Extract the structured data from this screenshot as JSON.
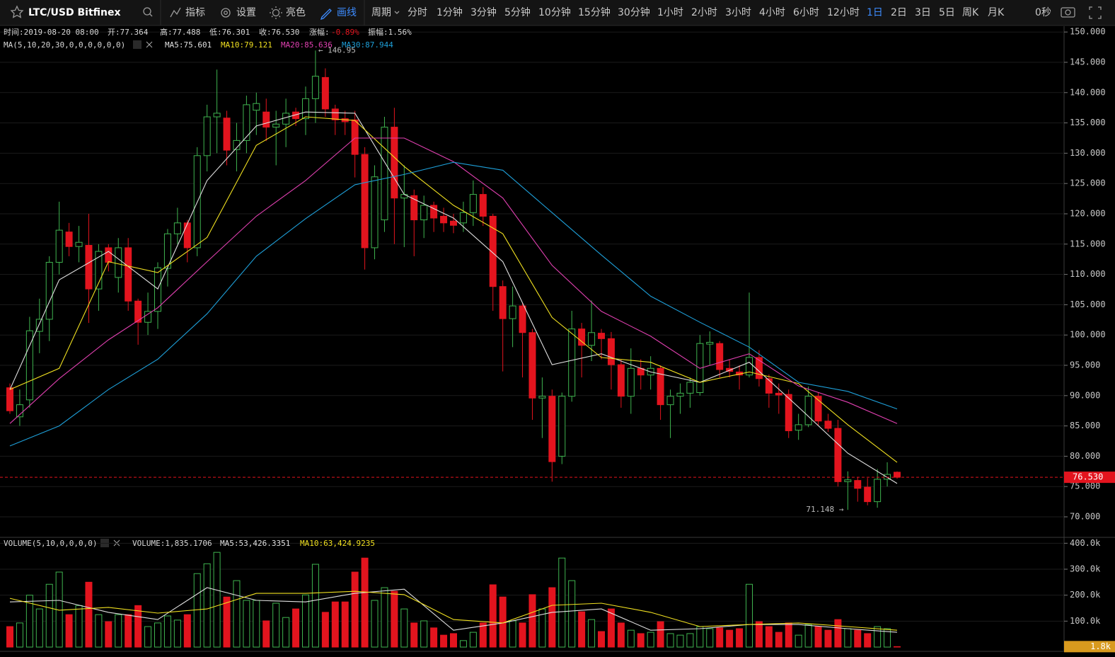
{
  "toolbar": {
    "symbol": "LTC/USD Bitfinex",
    "tools": [
      "指标",
      "设置",
      "亮色",
      "画线"
    ],
    "active_tool": 3,
    "period_label": "周期",
    "periods": [
      "分时",
      "1分钟",
      "3分钟",
      "5分钟",
      "10分钟",
      "15分钟",
      "30分钟",
      "1小时",
      "2小时",
      "3小时",
      "4小时",
      "6小时",
      "12小时",
      "1日",
      "2日",
      "3日",
      "5日",
      "周K",
      "月K"
    ],
    "active_period": 13,
    "timer": "0秒"
  },
  "chart_data": [
    {
      "type": "candlestick",
      "info": [
        "时间:2019-08-20 08:00",
        "开:77.364",
        "高:77.488",
        "低:76.301",
        "收:76.530",
        "涨幅:",
        "-0.89%",
        "振幅:1.56%"
      ],
      "ma_legend": "MA(5,10,20,30,0,0,0,0,0,0)",
      "up_color": "#3fb34f",
      "down_color": "#e3141e",
      "categories": [
        null,
        null,
        null,
        null,
        null,
        null,
        null,
        null,
        null,
        null,
        null,
        null,
        null,
        null,
        null,
        null,
        null,
        null,
        null,
        null,
        null,
        null,
        null,
        null,
        null,
        null,
        null,
        null,
        null,
        null,
        null,
        null,
        null,
        null,
        null,
        null,
        null,
        null,
        null,
        null,
        null,
        null,
        null,
        null,
        null,
        null,
        null,
        null,
        null,
        null,
        null,
        null,
        null,
        null,
        null,
        null,
        null,
        null,
        null,
        null,
        null,
        null,
        null,
        null,
        null,
        null,
        null,
        null,
        null,
        null,
        null,
        null,
        null,
        null,
        null,
        null,
        null,
        null,
        null,
        null,
        null,
        null,
        null,
        null,
        null,
        null,
        null,
        null,
        null,
        null,
        null
      ],
      "open": [
        91.3,
        86.5,
        89.3,
        100.6,
        102.6,
        112,
        117.0,
        114.6,
        114.8,
        107.6,
        114.4,
        109.5,
        114.4,
        105.6,
        102.1,
        103.9,
        111,
        116.7,
        118.5,
        114.4,
        129.6,
        136,
        135.8,
        130.6,
        132.1,
        137.1,
        136.8,
        134.3,
        134.8,
        136.8,
        135.7,
        139,
        142.5,
        137.3,
        135.7,
        135.5,
        129.8,
        114.4,
        119,
        134.3,
        122.6,
        123,
        119,
        121.4,
        119.6,
        118.8,
        118.5,
        120.2,
        123.2,
        119.6,
        108,
        102.7,
        104.8,
        100.4,
        89.6,
        89.9,
        80,
        89.9,
        101,
        98.3,
        100.3,
        99.4,
        95.1,
        89.9,
        94.5,
        93.4,
        94.5,
        88.5,
        89.9,
        90.4,
        90.5,
        98.5,
        98.6,
        94.5,
        93.9,
        93.4,
        96.3,
        92.8,
        90.4,
        90.2,
        84.3,
        85.2,
        89.9,
        85.8,
        84.6,
        75.8,
        76,
        74.9,
        72.5,
        76.2,
        77.364
      ],
      "high": [
        92,
        91,
        103,
        106,
        113,
        122,
        118.5,
        118,
        120,
        115,
        115,
        116,
        116,
        106,
        107,
        112,
        117.5,
        121,
        119,
        131,
        138,
        143.8,
        137,
        135,
        139.5,
        140,
        139,
        137,
        139,
        137.5,
        141,
        146.95,
        144,
        138,
        137,
        137,
        131,
        128,
        136,
        137.5,
        128,
        124,
        123,
        122,
        121,
        120,
        122,
        125.5,
        124.4,
        120,
        109,
        108,
        105.3,
        101,
        93,
        91,
        90.5,
        104,
        102,
        105.7,
        101,
        100.5,
        96,
        97.8,
        96,
        96.5,
        95,
        91,
        92,
        93,
        100,
        100.6,
        99,
        96,
        95,
        107,
        97.5,
        93.5,
        92,
        91,
        87,
        91.5,
        90.5,
        87,
        86,
        77.5,
        76.6,
        76.4,
        77.9,
        79,
        77.488
      ],
      "low": [
        87,
        85,
        88,
        97,
        99,
        110,
        113,
        112,
        102,
        104,
        110.5,
        107,
        104,
        98.4,
        100,
        101,
        108,
        115,
        112,
        113,
        127,
        130,
        128,
        127,
        130,
        133,
        132,
        128,
        131,
        134.5,
        133,
        135,
        136,
        133,
        133,
        126,
        110.8,
        112.5,
        117,
        115,
        114.5,
        113,
        116,
        117,
        117,
        116.8,
        117,
        118,
        118,
        104,
        94,
        98,
        93,
        86,
        83,
        75.8,
        78.7,
        89,
        93,
        95.7,
        96,
        91,
        88,
        87,
        91,
        91,
        86,
        83,
        87,
        88,
        90,
        95,
        93,
        93,
        91,
        93,
        91.5,
        88,
        87,
        83,
        82.7,
        84.8,
        85,
        84,
        75,
        71.148,
        72.5,
        71.9,
        71.5,
        75,
        76.301
      ],
      "close": [
        87.5,
        88.5,
        100.7,
        102.6,
        112,
        117.3,
        114.6,
        115.3,
        107.6,
        113.8,
        112.0,
        114.4,
        105.6,
        102.1,
        103.9,
        111.1,
        116.7,
        118.5,
        114.4,
        129.6,
        136.0,
        136.6,
        130.5,
        132.1,
        138,
        138.2,
        134.3,
        134.8,
        136.6,
        135.7,
        139,
        142.7,
        137.3,
        135.5,
        135.2,
        129.8,
        114.4,
        126.1,
        134.3,
        122.6,
        123.2,
        119,
        121.4,
        119.3,
        118.5,
        118.1,
        120.2,
        123.2,
        119.6,
        108.0,
        102.7,
        104.8,
        100.4,
        89.6,
        89.9,
        79.1,
        89.9,
        101,
        98.3,
        100.4,
        99.4,
        95.1,
        89.9,
        94.5,
        93.4,
        94.5,
        88.5,
        89.9,
        90.4,
        92.2,
        98.6,
        98.8,
        94.3,
        94.0,
        93.4,
        96.3,
        92.8,
        90.4,
        90.1,
        84.2,
        85.2,
        89.9,
        85.8,
        84.6,
        75.8,
        76.1,
        74.7,
        72.5,
        76.2,
        77,
        76.53
      ],
      "ma_series": [
        {
          "label": "MA5:75.601",
          "color": "#e0e0e0",
          "x": [
            0,
            5,
            10,
            15,
            20,
            25,
            30,
            35,
            40,
            45,
            50,
            55,
            60,
            65,
            70,
            75,
            80,
            85,
            90
          ],
          "values": [
            91,
            109.1,
            113.8,
            107.6,
            125.5,
            134.5,
            136.8,
            136.6,
            123.2,
            119.3,
            112.1,
            95.1,
            96.9,
            93.9,
            92.2,
            95.5,
            88.1,
            80.5,
            75.5
          ]
        },
        {
          "label": "MA10:79.121",
          "color": "#f0e020",
          "x": [
            0,
            5,
            10,
            15,
            20,
            25,
            30,
            35,
            40,
            45,
            50,
            55,
            60,
            65,
            70,
            75,
            80,
            85,
            90
          ],
          "values": [
            91,
            94.5,
            112.1,
            110.3,
            116.1,
            131.3,
            136,
            135.4,
            127.8,
            121.4,
            116.7,
            102.9,
            96.3,
            95.5,
            92.2,
            93.9,
            92,
            85.2,
            79
          ]
        },
        {
          "label": "MA20:85.636",
          "color": "#e040b0",
          "x": [
            0,
            5,
            10,
            15,
            20,
            25,
            30,
            35,
            40,
            45,
            50,
            55,
            60,
            65,
            70,
            75,
            80,
            85,
            90
          ],
          "values": [
            85.4,
            92.8,
            99.2,
            104.5,
            112.1,
            119.6,
            125.5,
            132.5,
            132.5,
            128.6,
            122.6,
            111.5,
            103.9,
            99.8,
            94.5,
            96.9,
            91.6,
            88.9,
            85.4
          ]
        },
        {
          "label": "MA30:87.944",
          "color": "#1e9fd8",
          "x": [
            0,
            5,
            10,
            15,
            20,
            25,
            30,
            35,
            40,
            45,
            50,
            55,
            60,
            65,
            70,
            75,
            80,
            85,
            90
          ],
          "values": [
            81.7,
            85,
            91,
            96,
            103.5,
            113,
            119.2,
            124.8,
            126.5,
            128.5,
            127.2,
            120.2,
            113.2,
            106.4,
            102.1,
            98,
            92.2,
            90.7,
            87.8
          ]
        }
      ],
      "ylim": [
        66.73,
        150.84
      ],
      "yticks": [
        {
          "value": 70,
          "label": "70.000"
        },
        {
          "value": 75,
          "label": "75.000"
        },
        {
          "value": 80,
          "label": "80.000"
        },
        {
          "value": 85,
          "label": "85.000"
        },
        {
          "value": 90,
          "label": "90.000"
        },
        {
          "value": 95,
          "label": "95.000"
        },
        {
          "value": 100,
          "label": "100.000"
        },
        {
          "value": 105,
          "label": "105.000"
        },
        {
          "value": 110,
          "label": "110.000"
        },
        {
          "value": 115,
          "label": "115.000"
        },
        {
          "value": 120,
          "label": "120.000"
        },
        {
          "value": 125,
          "label": "125.000"
        },
        {
          "value": 130,
          "label": "130.000"
        },
        {
          "value": 135,
          "label": "135.000"
        },
        {
          "value": 140,
          "label": "140.000"
        },
        {
          "value": 145,
          "label": "145.000"
        },
        {
          "value": 150,
          "label": "150.000"
        }
      ],
      "grid": true,
      "last_price": {
        "value": 76.53,
        "label": "76.530"
      },
      "annotations": [
        {
          "text": "← 146.95",
          "index": 31,
          "value": 146.95
        },
        {
          "text": "71.148 →",
          "index": 85,
          "value": 71.148
        }
      ]
    },
    {
      "type": "volume",
      "legend": "VOLUME(5,10,0,0,0,0)",
      "volume_label": "VOLUME:1,835.1706",
      "values": [
        79000,
        93000,
        200000,
        147000,
        242000,
        289000,
        125000,
        160000,
        250000,
        125000,
        98000,
        125000,
        125000,
        160000,
        79000,
        93000,
        120000,
        104000,
        125000,
        283000,
        321000,
        365000,
        193000,
        256000,
        180000,
        180000,
        101000,
        169000,
        114000,
        147000,
        201000,
        319000,
        134000,
        174000,
        174000,
        289000,
        343000,
        180000,
        229000,
        215000,
        147000,
        93000,
        101000,
        74000,
        46000,
        52000,
        25000,
        57000,
        93000,
        240000,
        193000,
        101000,
        93000,
        202000,
        147000,
        229000,
        343000,
        256000,
        136000,
        106000,
        60000,
        147000,
        93000,
        65000,
        52000,
        57000,
        98000,
        52000,
        46000,
        52000,
        79000,
        71000,
        74000,
        65000,
        71000,
        242000,
        98000,
        79000,
        57000,
        93000,
        46000,
        87000,
        79000,
        65000,
        106000,
        71000,
        65000,
        52000,
        79000,
        71000,
        1835.1706
      ],
      "ma_series": [
        {
          "label": "MA5:53,426.3351",
          "color": "#e0e0e0",
          "x": [
            0,
            5,
            10,
            15,
            20,
            25,
            30,
            35,
            40,
            45,
            50,
            55,
            60,
            65,
            70,
            75,
            80,
            85,
            90
          ],
          "values": [
            174000,
            180000,
            134000,
            106000,
            229000,
            180000,
            174000,
            207000,
            223000,
            65000,
            93000,
            134000,
            147000,
            65000,
            71000,
            87000,
            87000,
            71000,
            57000
          ]
        },
        {
          "label": "MA10:63,424.9235",
          "color": "#f0e020",
          "x": [
            0,
            5,
            10,
            15,
            20,
            25,
            30,
            35,
            40,
            45,
            50,
            55,
            60,
            65,
            70,
            75,
            80,
            85,
            90
          ],
          "values": [
            188000,
            142000,
            153000,
            131000,
            147000,
            207000,
            207000,
            215000,
            202000,
            106000,
            93000,
            161000,
            169000,
            134000,
            79000,
            87000,
            93000,
            79000,
            65000
          ]
        }
      ],
      "ylim": [
        0,
        420000
      ],
      "yticks": [
        {
          "value": 100000,
          "label": "100.0k"
        },
        {
          "value": 200000,
          "label": "200.0k"
        },
        {
          "value": 300000,
          "label": "300.0k"
        },
        {
          "value": 400000,
          "label": "400.0k"
        }
      ],
      "grid": true,
      "last_volume": {
        "value": 1835.1706,
        "label": "1.8k"
      }
    }
  ]
}
